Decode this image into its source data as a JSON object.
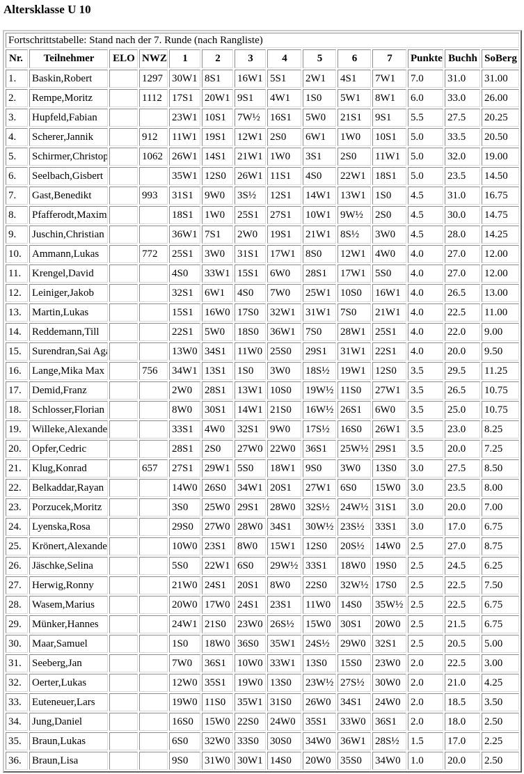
{
  "page_title": "Altersklasse U 10",
  "table": {
    "caption": "Fortschrittstabelle: Stand nach der 7. Runde (nach Rangliste)",
    "headers": [
      "Nr.",
      "Teilnehmer",
      "ELO",
      "NWZ",
      "1",
      "2",
      "3",
      "4",
      "5",
      "6",
      "7",
      "Punkte",
      "Buchh",
      "SoBerg"
    ],
    "rows": [
      [
        "1.",
        "Baskin,Robert",
        "",
        "1297",
        "30W1",
        "8S1",
        "16W1",
        "5S1",
        "2W1",
        "4S1",
        "7W1",
        "7.0",
        "31.0",
        "31.00"
      ],
      [
        "2.",
        "Rempe,Moritz",
        "",
        "1112",
        "17S1",
        "20W1",
        "9S1",
        "4W1",
        "1S0",
        "5W1",
        "8W1",
        "6.0",
        "33.0",
        "26.00"
      ],
      [
        "3.",
        "Hupfeld,Fabian",
        "",
        "",
        "23W1",
        "10S1",
        "7W½",
        "16S1",
        "5W0",
        "21S1",
        "9S1",
        "5.5",
        "27.5",
        "20.25"
      ],
      [
        "4.",
        "Scherer,Jannik",
        "",
        "912",
        "11W1",
        "19S1",
        "12W1",
        "2S0",
        "6W1",
        "1W0",
        "10S1",
        "5.0",
        "33.5",
        "20.50"
      ],
      [
        "5.",
        "Schirmer,Christop",
        "",
        "1062",
        "26W1",
        "14S1",
        "21W1",
        "1W0",
        "3S1",
        "2S0",
        "11W1",
        "5.0",
        "32.0",
        "19.00"
      ],
      [
        "6.",
        "Seelbach,Gisbert",
        "",
        "",
        "35W1",
        "12S0",
        "26W1",
        "11S1",
        "4S0",
        "22W1",
        "18S1",
        "5.0",
        "23.5",
        "14.50"
      ],
      [
        "7.",
        "Gast,Benedikt",
        "",
        "993",
        "31S1",
        "9W0",
        "3S½",
        "12S1",
        "14W1",
        "13W1",
        "1S0",
        "4.5",
        "31.0",
        "16.75"
      ],
      [
        "8.",
        "Pfafferodt,Maximi",
        "",
        "",
        "18S1",
        "1W0",
        "25S1",
        "27S1",
        "10W1",
        "9W½",
        "2S0",
        "4.5",
        "30.0",
        "14.75"
      ],
      [
        "9.",
        "Juschin,Christian",
        "",
        "",
        "36W1",
        "7S1",
        "2W0",
        "19S1",
        "21W1",
        "8S½",
        "3W0",
        "4.5",
        "28.0",
        "14.25"
      ],
      [
        "10.",
        "Ammann,Lukas",
        "",
        "772",
        "25S1",
        "3W0",
        "31S1",
        "17W1",
        "8S0",
        "12W1",
        "4W0",
        "4.0",
        "27.0",
        "12.00"
      ],
      [
        "11.",
        "Krengel,David",
        "",
        "",
        "4S0",
        "33W1",
        "15S1",
        "6W0",
        "28S1",
        "17W1",
        "5S0",
        "4.0",
        "27.0",
        "12.00"
      ],
      [
        "12.",
        "Leiniger,Jakob",
        "",
        "",
        "32S1",
        "6W1",
        "4S0",
        "7W0",
        "25W1",
        "10S0",
        "16W1",
        "4.0",
        "26.5",
        "13.00"
      ],
      [
        "13.",
        "Martin,Lukas",
        "",
        "",
        "15S1",
        "16W0",
        "17S0",
        "32W1",
        "31W1",
        "7S0",
        "21W1",
        "4.0",
        "22.5",
        "11.00"
      ],
      [
        "14.",
        "Reddemann,Till",
        "",
        "",
        "22S1",
        "5W0",
        "18S0",
        "36W1",
        "7S0",
        "28W1",
        "25S1",
        "4.0",
        "22.0",
        "9.00"
      ],
      [
        "15.",
        "Surendran,Sai Aga",
        "",
        "",
        "13W0",
        "34S1",
        "11W0",
        "25S0",
        "29S1",
        "31W1",
        "22S1",
        "4.0",
        "20.0",
        "9.50"
      ],
      [
        "16.",
        "Lange,Mika Max",
        "",
        "756",
        "34W1",
        "13S1",
        "1S0",
        "3W0",
        "18S½",
        "19W1",
        "12S0",
        "3.5",
        "29.5",
        "11.25"
      ],
      [
        "17.",
        "Demid,Franz",
        "",
        "",
        "2W0",
        "28S1",
        "13W1",
        "10S0",
        "19W½",
        "11S0",
        "27W1",
        "3.5",
        "26.5",
        "10.75"
      ],
      [
        "18.",
        "Schlosser,Florian",
        "",
        "",
        "8W0",
        "30S1",
        "14W1",
        "21S0",
        "16W½",
        "26S1",
        "6W0",
        "3.5",
        "25.0",
        "10.75"
      ],
      [
        "19.",
        "Willeke,Alexander",
        "",
        "",
        "33S1",
        "4W0",
        "32S1",
        "9W0",
        "17S½",
        "16S0",
        "26W1",
        "3.5",
        "23.0",
        "8.25"
      ],
      [
        "20.",
        "Opfer,Cedric",
        "",
        "",
        "28S1",
        "2S0",
        "27W0",
        "22W0",
        "36S1",
        "25W½",
        "29S1",
        "3.5",
        "20.0",
        "7.25"
      ],
      [
        "21.",
        "Klug,Konrad",
        "",
        "657",
        "27S1",
        "29W1",
        "5S0",
        "18W1",
        "9S0",
        "3W0",
        "13S0",
        "3.0",
        "27.5",
        "8.50"
      ],
      [
        "22.",
        "Belkaddar,Rayan",
        "",
        "",
        "14W0",
        "26S0",
        "34W1",
        "20S1",
        "27W1",
        "6S0",
        "15W0",
        "3.0",
        "23.5",
        "8.00"
      ],
      [
        "23.",
        "Porzucek,Moritz",
        "",
        "",
        "3S0",
        "25W0",
        "29S1",
        "28W0",
        "32S½",
        "24W½",
        "31S1",
        "3.0",
        "20.0",
        "7.00"
      ],
      [
        "24.",
        "Lyenska,Rosa",
        "",
        "",
        "29S0",
        "27W0",
        "28W0",
        "34S1",
        "30W½",
        "23S½",
        "33S1",
        "3.0",
        "17.0",
        "6.75"
      ],
      [
        "25.",
        "Krönert,Alexander",
        "",
        "",
        "10W0",
        "23S1",
        "8W0",
        "15W1",
        "12S0",
        "20S½",
        "14W0",
        "2.5",
        "27.0",
        "8.75"
      ],
      [
        "26.",
        "Jäschke,Selina",
        "",
        "",
        "5S0",
        "22W1",
        "6S0",
        "29W½",
        "33S1",
        "18W0",
        "19S0",
        "2.5",
        "24.5",
        "6.25"
      ],
      [
        "27.",
        "Herwig,Ronny",
        "",
        "",
        "21W0",
        "24S1",
        "20S1",
        "8W0",
        "22S0",
        "32W½",
        "17S0",
        "2.5",
        "22.5",
        "7.50"
      ],
      [
        "28.",
        "Wasem,Marius",
        "",
        "",
        "20W0",
        "17W0",
        "24S1",
        "23S1",
        "11W0",
        "14S0",
        "35W½",
        "2.5",
        "22.5",
        "6.75"
      ],
      [
        "29.",
        "Münker,Hannes",
        "",
        "",
        "24W1",
        "21S0",
        "23W0",
        "26S½",
        "15W0",
        "30S1",
        "20W0",
        "2.5",
        "21.5",
        "6.75"
      ],
      [
        "30.",
        "Maar,Samuel",
        "",
        "",
        "1S0",
        "18W0",
        "36S0",
        "35W1",
        "24S½",
        "29W0",
        "32S1",
        "2.5",
        "20.5",
        "5.00"
      ],
      [
        "31.",
        "Seeberg,Jan",
        "",
        "",
        "7W0",
        "36S1",
        "10W0",
        "33W1",
        "13S0",
        "15S0",
        "23W0",
        "2.0",
        "22.5",
        "3.00"
      ],
      [
        "32.",
        "Oerter,Lukas",
        "",
        "",
        "12W0",
        "35S1",
        "19W0",
        "13S0",
        "23W½",
        "27S½",
        "30W0",
        "2.0",
        "21.0",
        "4.25"
      ],
      [
        "33.",
        "Euteneuer,Lars",
        "",
        "",
        "19W0",
        "11S0",
        "35W1",
        "31S0",
        "26W0",
        "34S1",
        "24W0",
        "2.0",
        "18.5",
        "3.50"
      ],
      [
        "34.",
        "Jung,Daniel",
        "",
        "",
        "16S0",
        "15W0",
        "22S0",
        "24W0",
        "35S1",
        "33W0",
        "36S1",
        "2.0",
        "18.0",
        "2.50"
      ],
      [
        "35.",
        "Braun,Lukas",
        "",
        "",
        "6S0",
        "32W0",
        "33S0",
        "30S0",
        "34W0",
        "36W1",
        "28S½",
        "1.5",
        "17.0",
        "2.25"
      ],
      [
        "36.",
        "Braun,Lisa",
        "",
        "",
        "9S0",
        "31W0",
        "30W1",
        "14S0",
        "20W0",
        "35S0",
        "34W0",
        "1.0",
        "20.0",
        "2.50"
      ]
    ]
  }
}
